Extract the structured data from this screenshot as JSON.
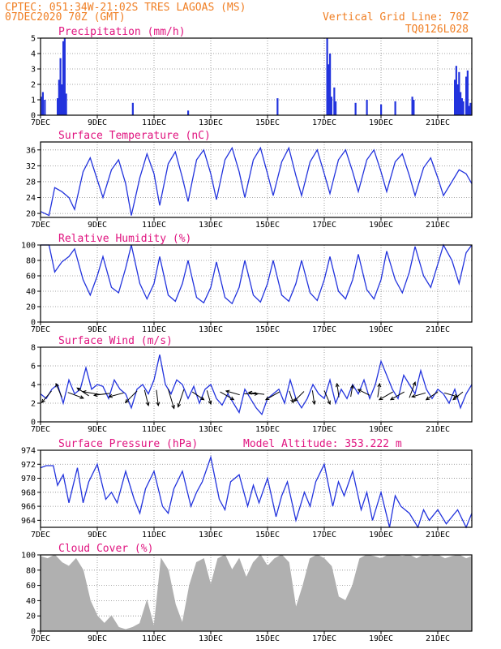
{
  "header": {
    "line1": "CPTEC:   051:34W-21:02S   TRES LAGOAS (MS)",
    "line2": "07DEC2020 70Z (GMT)",
    "grid_note": "Vertical Grid Line: 70Z",
    "code": "TQ0126L028"
  },
  "colors": {
    "header": "#f07f24",
    "title": "#e0137f",
    "series": "#2233dd",
    "cloud": "#b0b0b0",
    "arrow": "#000000"
  },
  "x_ticks": [
    "7DEC",
    "9DEC",
    "11DEC",
    "13DEC",
    "15DEC",
    "17DEC",
    "19DEC",
    "21DEC"
  ],
  "chart_data": [
    {
      "id": "precip",
      "type": "bar",
      "title": "Precipitation (mm/h)",
      "xlabel": "",
      "ylabel": "",
      "xlim": [
        7,
        22.2
      ],
      "ylim": [
        0,
        5
      ],
      "y_ticks": [
        0,
        1,
        2,
        3,
        4,
        5
      ],
      "x": [
        7.02,
        7.08,
        7.15,
        7.6,
        7.65,
        7.7,
        7.75,
        7.8,
        7.85,
        7.9,
        10.25,
        12.2,
        15.35,
        17.1,
        17.15,
        17.2,
        17.25,
        17.35,
        17.4,
        18.1,
        18.5,
        19.0,
        19.5,
        20.1,
        20.15,
        21.6,
        21.65,
        21.7,
        21.75,
        21.8,
        21.85,
        21.9,
        22.0,
        22.05,
        22.1,
        22.15
      ],
      "values": [
        1.2,
        1.5,
        1.0,
        1.1,
        2.3,
        3.7,
        2.0,
        4.8,
        5.0,
        1.4,
        0.8,
        0.3,
        1.1,
        5.0,
        3.3,
        4.0,
        1.2,
        1.8,
        0.9,
        0.8,
        1.0,
        0.7,
        0.9,
        1.2,
        1.0,
        2.3,
        3.2,
        2.0,
        2.8,
        1.5,
        1.1,
        0.9,
        2.5,
        2.9,
        0.6,
        0.8
      ]
    },
    {
      "id": "temp",
      "type": "line",
      "title": "Surface Temperature (nC)",
      "xlabel": "",
      "ylabel": "",
      "xlim": [
        7,
        22.2
      ],
      "ylim": [
        19,
        38
      ],
      "y_ticks": [
        20,
        24,
        28,
        32,
        36
      ],
      "x": [
        7.0,
        7.3,
        7.5,
        7.75,
        8.0,
        8.2,
        8.5,
        8.75,
        9.0,
        9.2,
        9.5,
        9.75,
        10.0,
        10.2,
        10.5,
        10.75,
        11.0,
        11.2,
        11.5,
        11.75,
        12.0,
        12.2,
        12.5,
        12.75,
        13.0,
        13.2,
        13.5,
        13.75,
        14.0,
        14.2,
        14.5,
        14.75,
        15.0,
        15.2,
        15.5,
        15.75,
        16.0,
        16.2,
        16.5,
        16.75,
        17.0,
        17.2,
        17.5,
        17.75,
        18.0,
        18.2,
        18.5,
        18.75,
        19.0,
        19.2,
        19.5,
        19.75,
        20.0,
        20.2,
        20.5,
        20.75,
        21.0,
        21.2,
        21.5,
        21.75,
        22.0,
        22.2
      ],
      "values": [
        20.5,
        19.5,
        26.5,
        25.5,
        24.0,
        21.0,
        30.5,
        34.0,
        28.5,
        24.0,
        31.0,
        33.5,
        27.5,
        19.5,
        29.0,
        35.0,
        30.0,
        22.0,
        32.5,
        35.5,
        29.0,
        23.0,
        33.5,
        36.0,
        30.0,
        23.5,
        33.5,
        36.5,
        30.5,
        24.0,
        33.5,
        36.5,
        30.0,
        24.5,
        33.0,
        36.5,
        29.5,
        24.5,
        33.0,
        36.0,
        30.0,
        25.0,
        33.5,
        36.0,
        30.5,
        25.5,
        33.5,
        36.0,
        30.5,
        25.5,
        33.0,
        35.0,
        29.5,
        24.5,
        31.5,
        34.0,
        29.0,
        24.5,
        28.0,
        31.0,
        30.0,
        27.5
      ]
    },
    {
      "id": "rh",
      "type": "line",
      "title": "Relative Humidity (%)",
      "xlabel": "",
      "ylabel": "",
      "xlim": [
        7,
        22.2
      ],
      "ylim": [
        0,
        100
      ],
      "y_ticks": [
        0,
        20,
        40,
        60,
        80,
        100
      ],
      "x": [
        7.0,
        7.3,
        7.5,
        7.75,
        8.0,
        8.2,
        8.5,
        8.75,
        9.0,
        9.2,
        9.5,
        9.75,
        10.0,
        10.2,
        10.5,
        10.75,
        11.0,
        11.2,
        11.5,
        11.75,
        12.0,
        12.2,
        12.5,
        12.75,
        13.0,
        13.2,
        13.5,
        13.75,
        14.0,
        14.2,
        14.5,
        14.75,
        15.0,
        15.2,
        15.5,
        15.75,
        16.0,
        16.2,
        16.5,
        16.75,
        17.0,
        17.2,
        17.5,
        17.75,
        18.0,
        18.2,
        18.5,
        18.75,
        19.0,
        19.2,
        19.5,
        19.75,
        20.0,
        20.2,
        20.5,
        20.75,
        21.0,
        21.2,
        21.5,
        21.75,
        22.0,
        22.2
      ],
      "values": [
        100,
        100,
        65,
        78,
        85,
        95,
        55,
        35,
        60,
        85,
        45,
        38,
        70,
        100,
        50,
        30,
        50,
        85,
        35,
        27,
        50,
        80,
        32,
        25,
        45,
        78,
        32,
        24,
        45,
        80,
        35,
        26,
        50,
        80,
        35,
        27,
        50,
        80,
        38,
        28,
        55,
        85,
        40,
        30,
        55,
        88,
        42,
        30,
        55,
        92,
        55,
        38,
        65,
        98,
        60,
        45,
        75,
        100,
        80,
        50,
        90,
        100
      ]
    },
    {
      "id": "wind",
      "type": "line",
      "title": "Surface Wind (m/s)",
      "xlabel": "",
      "ylabel": "",
      "xlim": [
        7,
        22.2
      ],
      "ylim": [
        0,
        8
      ],
      "y_ticks": [
        0,
        2,
        4,
        6,
        8
      ],
      "x": [
        7.0,
        7.2,
        7.4,
        7.6,
        7.8,
        8.0,
        8.2,
        8.4,
        8.6,
        8.8,
        9.0,
        9.2,
        9.4,
        9.6,
        9.8,
        10.0,
        10.2,
        10.4,
        10.6,
        10.8,
        11.0,
        11.2,
        11.4,
        11.6,
        11.8,
        12.0,
        12.2,
        12.4,
        12.6,
        12.8,
        13.0,
        13.2,
        13.4,
        13.6,
        13.8,
        14.0,
        14.2,
        14.4,
        14.6,
        14.8,
        15.0,
        15.2,
        15.4,
        15.6,
        15.8,
        16.0,
        16.2,
        16.4,
        16.6,
        16.8,
        17.0,
        17.2,
        17.4,
        17.6,
        17.8,
        18.0,
        18.2,
        18.4,
        18.6,
        18.8,
        19.0,
        19.2,
        19.4,
        19.6,
        19.8,
        20.0,
        20.2,
        20.4,
        20.6,
        20.8,
        21.0,
        21.2,
        21.4,
        21.6,
        21.8,
        22.0,
        22.2
      ],
      "values": [
        3.0,
        2.5,
        3.5,
        4.0,
        2.0,
        4.5,
        3.0,
        3.5,
        5.8,
        3.5,
        4.0,
        3.8,
        2.5,
        4.5,
        3.5,
        3.0,
        1.5,
        3.5,
        4.0,
        3.0,
        4.5,
        7.2,
        4.0,
        3.0,
        4.5,
        4.0,
        2.5,
        3.8,
        2.0,
        3.5,
        4.0,
        2.5,
        1.8,
        3.0,
        2.0,
        1.0,
        3.5,
        2.5,
        1.5,
        0.8,
        2.5,
        3.0,
        3.5,
        2.0,
        4.5,
        2.5,
        1.5,
        2.5,
        4.0,
        3.0,
        2.5,
        4.5,
        2.0,
        3.5,
        2.5,
        4.0,
        3.0,
        4.5,
        2.5,
        4.0,
        6.5,
        5.0,
        3.5,
        2.5,
        5.0,
        4.0,
        3.0,
        5.5,
        3.5,
        2.5,
        3.5,
        3.0,
        2.0,
        3.5,
        1.5,
        3.0,
        4.0
      ],
      "vectors": [
        {
          "x": 7.3,
          "u": -1.0,
          "v": -1.2
        },
        {
          "x": 7.7,
          "u": -0.6,
          "v": 1.4
        },
        {
          "x": 8.1,
          "u": 1.6,
          "v": -0.6
        },
        {
          "x": 8.6,
          "u": -1.2,
          "v": 0.8
        },
        {
          "x": 8.95,
          "u": -1.8,
          "v": 0.3
        },
        {
          "x": 9.3,
          "u": -1.6,
          "v": -0.2
        },
        {
          "x": 9.8,
          "u": -1.5,
          "v": -0.4
        },
        {
          "x": 10.3,
          "u": -1.2,
          "v": -1.2
        },
        {
          "x": 10.7,
          "u": 0.4,
          "v": -1.6
        },
        {
          "x": 11.1,
          "u": 0.2,
          "v": -1.6
        },
        {
          "x": 11.55,
          "u": 0.6,
          "v": -2.0
        },
        {
          "x": 12.0,
          "u": -0.6,
          "v": -1.8
        },
        {
          "x": 12.45,
          "u": 1.2,
          "v": -0.8
        },
        {
          "x": 12.9,
          "u": 0.4,
          "v": -1.4
        },
        {
          "x": 13.45,
          "u": 1.4,
          "v": -0.8
        },
        {
          "x": 13.9,
          "u": -1.4,
          "v": 0.4
        },
        {
          "x": 14.3,
          "u": 1.4,
          "v": 0.0
        },
        {
          "x": 14.75,
          "u": -1.6,
          "v": 0.2
        },
        {
          "x": 15.3,
          "u": -1.4,
          "v": -0.8
        },
        {
          "x": 15.8,
          "u": 0.4,
          "v": -1.2
        },
        {
          "x": 16.2,
          "u": -1.0,
          "v": -1.0
        },
        {
          "x": 16.6,
          "u": 0.2,
          "v": -1.4
        },
        {
          "x": 17.05,
          "u": 0.6,
          "v": -1.4
        },
        {
          "x": 17.5,
          "u": -0.2,
          "v": 1.4
        },
        {
          "x": 17.95,
          "u": 0.2,
          "v": 1.2
        },
        {
          "x": 18.5,
          "u": -1.2,
          "v": 0.6
        },
        {
          "x": 18.9,
          "u": 0.2,
          "v": 1.4
        },
        {
          "x": 19.3,
          "u": -1.4,
          "v": -0.8
        },
        {
          "x": 19.7,
          "u": -1.4,
          "v": -0.8
        },
        {
          "x": 20.05,
          "u": 0.6,
          "v": 1.6
        },
        {
          "x": 20.45,
          "u": -1.4,
          "v": -0.4
        },
        {
          "x": 20.9,
          "u": -1.2,
          "v": -0.8
        },
        {
          "x": 21.35,
          "u": 1.4,
          "v": -0.4
        },
        {
          "x": 21.8,
          "u": -1.0,
          "v": -0.8
        }
      ]
    },
    {
      "id": "pressure",
      "type": "line",
      "title": "Surface Pressure (hPa)",
      "annotation": "Model Altitude: 353.222 m",
      "xlabel": "",
      "ylabel": "",
      "xlim": [
        7,
        22.2
      ],
      "ylim": [
        963,
        974
      ],
      "y_ticks": [
        964,
        966,
        968,
        970,
        972,
        974
      ],
      "x": [
        7.0,
        7.2,
        7.45,
        7.6,
        7.8,
        8.0,
        8.3,
        8.5,
        8.7,
        9.0,
        9.3,
        9.5,
        9.7,
        10.0,
        10.3,
        10.5,
        10.7,
        11.0,
        11.3,
        11.5,
        11.7,
        12.0,
        12.3,
        12.5,
        12.7,
        13.0,
        13.3,
        13.5,
        13.7,
        14.0,
        14.3,
        14.5,
        14.7,
        15.0,
        15.3,
        15.5,
        15.7,
        16.0,
        16.3,
        16.5,
        16.7,
        17.0,
        17.3,
        17.5,
        17.7,
        18.0,
        18.3,
        18.5,
        18.7,
        19.0,
        19.3,
        19.5,
        19.7,
        20.0,
        20.3,
        20.5,
        20.7,
        21.0,
        21.3,
        21.5,
        21.7,
        22.0,
        22.2
      ],
      "values": [
        971.5,
        971.8,
        971.8,
        969.0,
        970.5,
        966.5,
        971.5,
        966.5,
        969.5,
        972.0,
        967.0,
        968.0,
        966.5,
        971.0,
        967.0,
        965.0,
        968.5,
        971.0,
        966.0,
        965.0,
        968.5,
        971.0,
        966.0,
        968.0,
        969.5,
        973.0,
        967.0,
        965.5,
        969.5,
        970.5,
        966.0,
        969.0,
        966.5,
        970.0,
        964.5,
        967.5,
        969.5,
        964.0,
        968.0,
        966.0,
        969.5,
        972.0,
        966.0,
        969.5,
        967.5,
        971.0,
        965.5,
        968.0,
        964.0,
        968.0,
        963.0,
        967.5,
        966.0,
        965.0,
        963.0,
        965.5,
        964.0,
        965.5,
        963.5,
        964.5,
        965.5,
        963.0,
        965.0
      ]
    },
    {
      "id": "cloud",
      "type": "area",
      "title": "Cloud Cover (%)",
      "xlabel": "",
      "ylabel": "",
      "xlim": [
        7,
        22.2
      ],
      "ylim": [
        0,
        100
      ],
      "y_ticks": [
        0,
        20,
        40,
        60,
        80,
        100
      ],
      "x": [
        7.0,
        7.25,
        7.5,
        7.75,
        8.0,
        8.25,
        8.5,
        8.75,
        9.0,
        9.25,
        9.5,
        9.75,
        10.0,
        10.25,
        10.5,
        10.75,
        11.0,
        11.25,
        11.5,
        11.75,
        12.0,
        12.25,
        12.5,
        12.75,
        13.0,
        13.25,
        13.5,
        13.75,
        14.0,
        14.25,
        14.5,
        14.75,
        15.0,
        15.25,
        15.5,
        15.75,
        16.0,
        16.25,
        16.5,
        16.75,
        17.0,
        17.25,
        17.5,
        17.75,
        18.0,
        18.25,
        18.5,
        18.75,
        19.0,
        19.25,
        19.5,
        19.75,
        20.0,
        20.25,
        20.5,
        20.75,
        21.0,
        21.25,
        21.5,
        21.75,
        22.0,
        22.2
      ],
      "values": [
        98,
        95,
        100,
        90,
        85,
        95,
        80,
        40,
        20,
        10,
        20,
        5,
        2,
        5,
        10,
        40,
        5,
        95,
        80,
        35,
        10,
        60,
        90,
        95,
        60,
        95,
        100,
        80,
        95,
        70,
        90,
        100,
        85,
        95,
        100,
        90,
        30,
        60,
        95,
        100,
        95,
        85,
        45,
        40,
        60,
        95,
        100,
        98,
        95,
        100,
        100,
        98,
        100,
        95,
        100,
        98,
        100,
        95,
        98,
        100,
        95,
        98
      ]
    }
  ]
}
